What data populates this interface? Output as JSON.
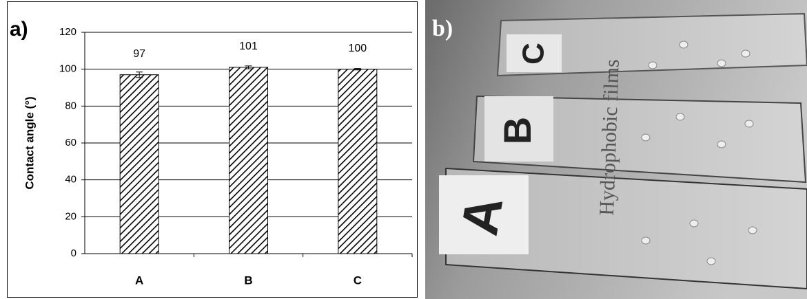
{
  "chart_data": {
    "type": "bar",
    "label": "a)",
    "ylabel": "Contact angle  (°)",
    "categories": [
      "A",
      "B",
      "C"
    ],
    "values": [
      97,
      101,
      100
    ],
    "errors": [
      1.5,
      0.8,
      0.4
    ],
    "ylim": [
      0,
      120
    ],
    "yticks": [
      0,
      20,
      40,
      60,
      80,
      100,
      120
    ],
    "grid": true,
    "color": "#000000"
  },
  "panel_b": {
    "label": "b)",
    "slides": [
      "C",
      "B",
      "A"
    ],
    "caption": "Hydrophobic films"
  }
}
